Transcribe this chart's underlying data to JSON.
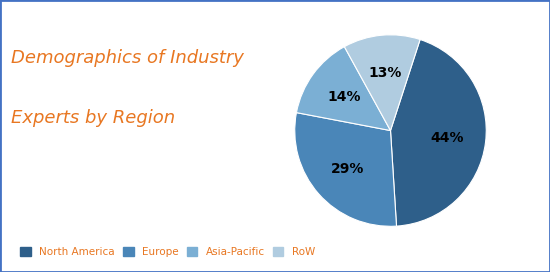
{
  "title_line1": "Demographics of Industry",
  "title_line2": "Experts by Region",
  "title_color": "#E87722",
  "title_fontsize": 13,
  "labels": [
    "North America",
    "Europe",
    "Asia-Pacific",
    "RoW"
  ],
  "values": [
    44,
    29,
    14,
    13
  ],
  "colors": [
    "#2E5F8A",
    "#4A86B8",
    "#7BAFD4",
    "#B0CCE0"
  ],
  "pct_labels": [
    "44%",
    "29%",
    "14%",
    "13%"
  ],
  "legend_text_color": "#E87722",
  "background_color": "#FFFFFF",
  "border_color": "#4472C4",
  "startangle": 72
}
